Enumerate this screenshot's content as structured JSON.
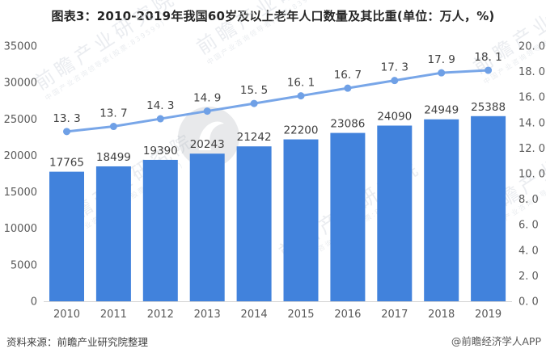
{
  "title": "图表3：2010-2019年我国60岁及以上老年人口数量及其比重(单位：万人，%)",
  "footer": {
    "source": "资料来源：前瞻产业研究院整理",
    "credit": "@前瞻经济学人APP"
  },
  "watermark": {
    "text": "前瞻产业研究院",
    "subtext": "中国产业咨询领导者(股票:839599)"
  },
  "colors": {
    "bar": "#4182DC",
    "line": "#78A6E8",
    "marker": "#6FA0E6",
    "axis_text": "#595959",
    "value_text": "#404040",
    "axis_line": "#D4D4D4",
    "title_text": "#262626",
    "watermark": "#D9DEE4"
  },
  "chart_data": {
    "type": "bar",
    "title": "图表3：2010-2019年我国60岁及以上老年人口数量及其比重(单位：万人，%)",
    "categories": [
      "2010",
      "2011",
      "2012",
      "2013",
      "2014",
      "2015",
      "2016",
      "2017",
      "2018",
      "2019"
    ],
    "series": [
      {
        "type": "bar",
        "axis": "left",
        "values": [
          17765,
          18499,
          19390,
          20243,
          21242,
          22200,
          23086,
          24090,
          24949,
          25388
        ],
        "labels": [
          "17765",
          "18499",
          "19390",
          "20243",
          "21242",
          "22200",
          "23086",
          "24090",
          "24949",
          "25388"
        ]
      },
      {
        "type": "line",
        "axis": "right",
        "values": [
          13.3,
          13.7,
          14.3,
          14.9,
          15.5,
          16.1,
          16.7,
          17.3,
          17.9,
          18.1
        ],
        "labels": [
          "13. 3",
          "13. 7",
          "14. 3",
          "14. 9",
          "15. 5",
          "16. 1",
          "16. 7",
          "17. 3",
          "17. 9",
          "18. 1"
        ]
      }
    ],
    "left_axis": {
      "min": 0,
      "max": 35000,
      "step": 5000,
      "tick_values": [
        0,
        5000,
        10000,
        15000,
        20000,
        25000,
        30000,
        35000
      ],
      "tick_labels": [
        "0",
        "5000",
        "10000",
        "15000",
        "20000",
        "25000",
        "30000",
        "35000"
      ]
    },
    "right_axis": {
      "min": 0,
      "max": 20,
      "step": 2,
      "tick_values": [
        0,
        2,
        4,
        6,
        8,
        10,
        12,
        14,
        16,
        18,
        20
      ],
      "tick_labels": [
        "0. 0",
        "2. 0",
        "4. 0",
        "6. 0",
        "8. 0",
        "10. 0",
        "12. 0",
        "14. 0",
        "16. 0",
        "18. 0",
        "20. 0"
      ]
    },
    "grid": false,
    "legend": "none"
  }
}
